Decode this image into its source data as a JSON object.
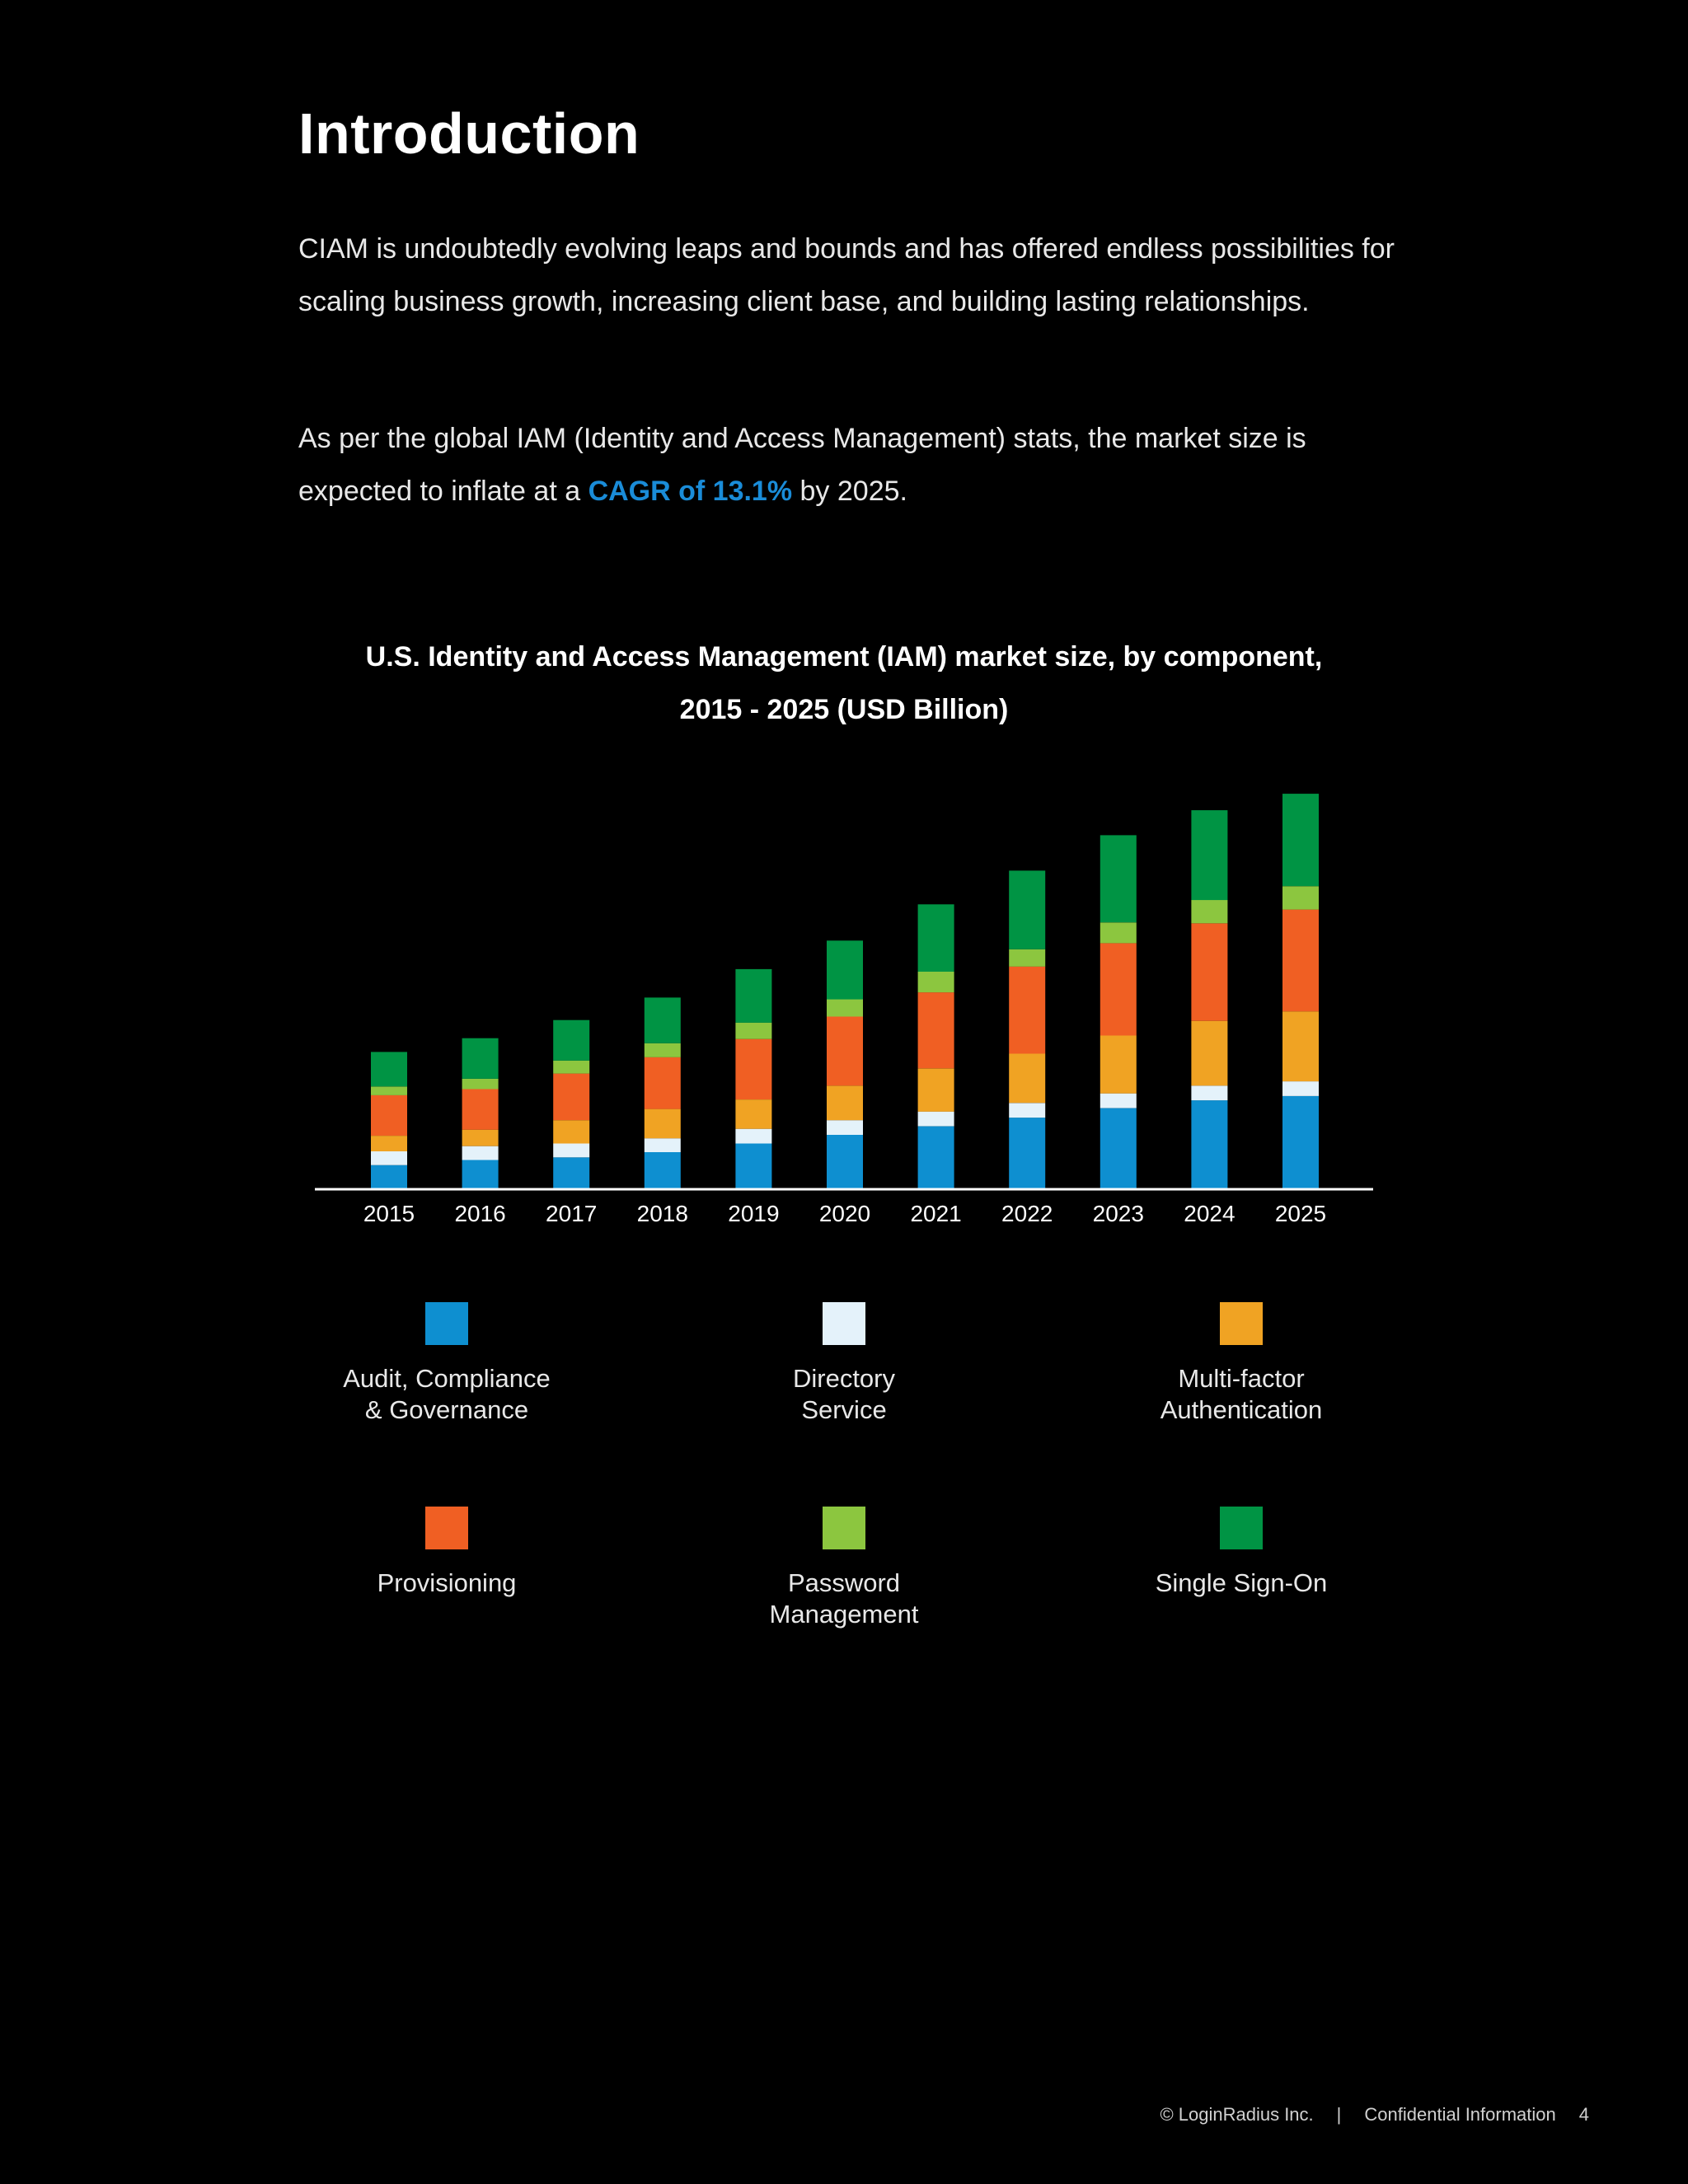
{
  "page": {
    "title": "Introduction",
    "paragraph1": "CIAM is undoubtedly evolving leaps and bounds and has offered endless possibilities for scaling business growth, increasing client base, and building lasting relationships.",
    "paragraph2_prefix": "As per the global IAM (Identity and Access Management) stats, the market size is expected to inflate at a ",
    "paragraph2_highlight": "CAGR of 13.1%",
    "paragraph2_suffix": " by 2025."
  },
  "chart_data": {
    "type": "bar",
    "stacked": true,
    "title": "U.S. Identity and Access Management (IAM) market size, by component, 2015 - 2025 (USD Billion)",
    "title_line1": "U.S. Identity and Access Management (IAM) market size, by component,",
    "title_line2": "2015 - 2025 (USD Billion)",
    "xlabel": "",
    "ylabel": "",
    "ylim": [
      0,
      4.6
    ],
    "categories": [
      "2015",
      "2016",
      "2017",
      "2018",
      "2019",
      "2020",
      "2021",
      "2022",
      "2023",
      "2024",
      "2025"
    ],
    "series": [
      {
        "name": "Audit, Compliance & Governance",
        "color": "#0e8fd0",
        "values": [
          0.27,
          0.33,
          0.36,
          0.42,
          0.52,
          0.62,
          0.72,
          0.82,
          0.93,
          1.02,
          1.07
        ]
      },
      {
        "name": "Directory Service",
        "color": "#e4f2fa",
        "values": [
          0.16,
          0.16,
          0.16,
          0.16,
          0.17,
          0.17,
          0.17,
          0.17,
          0.17,
          0.17,
          0.17
        ]
      },
      {
        "name": "Multi-factor Authentication",
        "color": "#f0a323",
        "values": [
          0.18,
          0.19,
          0.27,
          0.34,
          0.34,
          0.4,
          0.5,
          0.57,
          0.67,
          0.75,
          0.81
        ]
      },
      {
        "name": "Provisioning",
        "color": "#f05f23",
        "values": [
          0.47,
          0.47,
          0.54,
          0.6,
          0.7,
          0.8,
          0.88,
          1.01,
          1.07,
          1.13,
          1.18
        ]
      },
      {
        "name": "Password Management",
        "color": "#8cc63f",
        "values": [
          0.1,
          0.12,
          0.15,
          0.16,
          0.19,
          0.2,
          0.24,
          0.2,
          0.24,
          0.27,
          0.27
        ]
      },
      {
        "name": "Single Sign-On",
        "color": "#009444",
        "values": [
          0.4,
          0.47,
          0.47,
          0.53,
          0.62,
          0.68,
          0.78,
          0.91,
          1.01,
          1.04,
          1.07
        ]
      }
    ],
    "legend": [
      {
        "label": "Audit, Compliance\n& Governance",
        "color": "#0e8fd0"
      },
      {
        "label": "Directory\nService",
        "color": "#e4f2fa"
      },
      {
        "label": "Multi-factor\nAuthentication",
        "color": "#f0a323"
      },
      {
        "label": "Provisioning",
        "color": "#f05f23"
      },
      {
        "label": "Password\nManagement",
        "color": "#8cc63f"
      },
      {
        "label": "Single Sign-On",
        "color": "#009444"
      }
    ]
  },
  "footer": {
    "copyright": "© LoginRadius Inc.",
    "separator": "|",
    "confidential": "Confidential Information",
    "page_number": "4"
  }
}
